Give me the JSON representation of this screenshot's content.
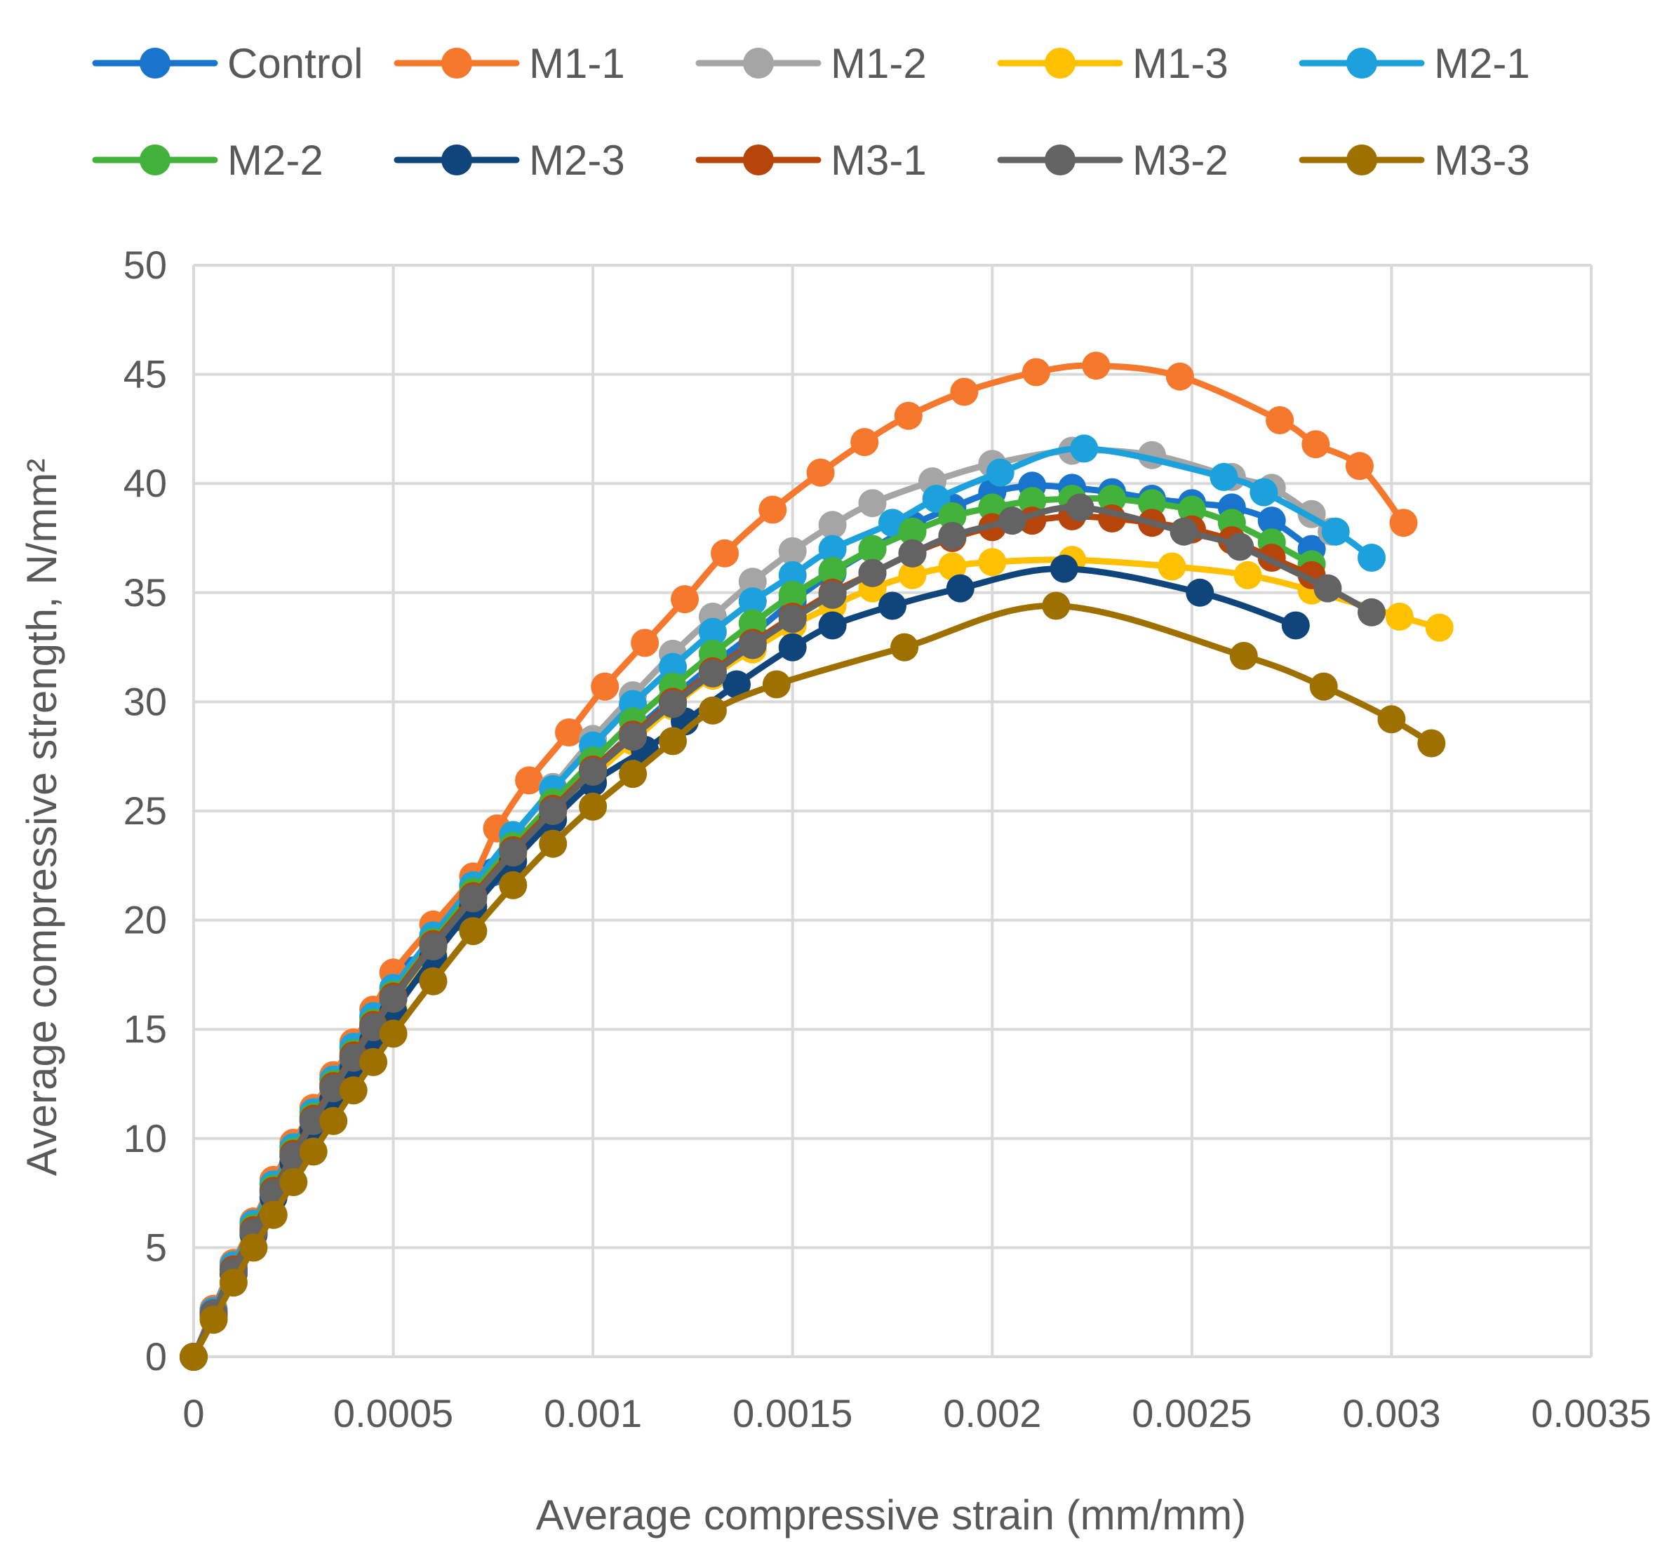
{
  "chart_data": {
    "type": "line",
    "title": "",
    "xlabel": "Average compressive strain (mm/mm)",
    "ylabel": "Average compressive strength, N/mm²",
    "xlim": [
      0,
      0.0035
    ],
    "ylim": [
      0,
      50
    ],
    "grid": true,
    "legend_position": "top",
    "x_ticks": [
      0,
      0.0005,
      0.001,
      0.0015,
      0.002,
      0.0025,
      0.003,
      0.0035
    ],
    "x_tick_labels": [
      "0",
      "0.0005",
      "0.001",
      "0.0015",
      "0.002",
      "0.0025",
      "0.003",
      "0.0035"
    ],
    "y_ticks": [
      0,
      5,
      10,
      15,
      20,
      25,
      30,
      35,
      40,
      45,
      50
    ],
    "y_tick_labels": [
      "0",
      "5",
      "10",
      "15",
      "20",
      "25",
      "30",
      "35",
      "40",
      "45",
      "50"
    ],
    "series": [
      {
        "name": "Control",
        "color": "#1874CD",
        "x": [
          0,
          5e-05,
          0.0001,
          0.00015,
          0.0002,
          0.00025,
          0.0003,
          0.00035,
          0.0004,
          0.00045,
          0.0005,
          0.00055,
          0.0006,
          0.00065,
          0.0007,
          0.00075,
          0.0008,
          0.0009,
          0.001,
          0.0011,
          0.0012,
          0.0013,
          0.0014,
          0.0015,
          0.0016,
          0.0017,
          0.0018,
          0.0019,
          0.002,
          0.0021,
          0.0022,
          0.0023,
          0.0024,
          0.0025,
          0.0026,
          0.0027,
          0.0028
        ],
        "y": [
          0,
          2,
          4,
          5.8,
          7.6,
          9.2,
          10.8,
          12.3,
          13.7,
          15.1,
          16.4,
          17.7,
          18.9,
          20.1,
          21.2,
          22.2,
          23.2,
          25.1,
          26.9,
          28.6,
          30.2,
          31.7,
          33.1,
          34.6,
          35.9,
          37,
          38.1,
          38.9,
          39.6,
          39.9,
          39.8,
          39.6,
          39.3,
          39.1,
          38.9,
          38.3,
          37
        ]
      },
      {
        "name": "M1-1",
        "color": "#F5782D",
        "x": [
          0,
          5e-05,
          0.0001,
          0.00015,
          0.0002,
          0.00025,
          0.0003,
          0.00035,
          0.0004,
          0.00045,
          0.0005,
          0.0006,
          0.0007,
          0.00076,
          0.00084,
          0.00094,
          0.00103,
          0.00113,
          0.00123,
          0.00133,
          0.00145,
          0.00157,
          0.00168,
          0.00179,
          0.00193,
          0.00211,
          0.00226,
          0.00247,
          0.00272,
          0.00281,
          0.00292,
          0.00303
        ],
        "y": [
          0,
          2.2,
          4.3,
          6.2,
          8.1,
          9.8,
          11.4,
          12.9,
          14.4,
          15.9,
          17.6,
          19.8,
          22,
          24.2,
          26.4,
          28.6,
          30.7,
          32.7,
          34.7,
          36.8,
          38.8,
          40.5,
          41.9,
          43.1,
          44.2,
          45.1,
          45.4,
          44.9,
          42.9,
          41.8,
          40.8,
          38.2
        ]
      },
      {
        "name": "M1-2",
        "color": "#A5A5A5",
        "x": [
          0,
          5e-05,
          0.0001,
          0.00015,
          0.0002,
          0.00025,
          0.0003,
          0.00035,
          0.0004,
          0.00045,
          0.0005,
          0.0006,
          0.0007,
          0.0008,
          0.0009,
          0.001,
          0.0011,
          0.0012,
          0.0013,
          0.0014,
          0.0015,
          0.0016,
          0.0017,
          0.00185,
          0.002,
          0.0022,
          0.0024,
          0.0026,
          0.0027,
          0.0028,
          0.00285
        ],
        "y": [
          0,
          2.1,
          4.2,
          6,
          7.9,
          9.6,
          11.2,
          12.7,
          14.1,
          15.5,
          16.8,
          19.2,
          21.5,
          23.8,
          26.1,
          28.3,
          30.3,
          32.2,
          33.9,
          35.5,
          36.9,
          38.1,
          39.1,
          40.1,
          40.9,
          41.5,
          41.3,
          40.3,
          39.8,
          38.6,
          37.8
        ]
      },
      {
        "name": "M1-3",
        "color": "#FFC000",
        "x": [
          0,
          5e-05,
          0.0001,
          0.00015,
          0.0002,
          0.00025,
          0.0003,
          0.00035,
          0.0004,
          0.00045,
          0.0005,
          0.0006,
          0.0007,
          0.0008,
          0.0009,
          0.001,
          0.0011,
          0.0012,
          0.0013,
          0.0014,
          0.0015,
          0.0016,
          0.0017,
          0.0018,
          0.0019,
          0.002,
          0.0022,
          0.00245,
          0.00264,
          0.0028,
          0.00302,
          0.00312
        ],
        "y": [
          0,
          1.9,
          3.8,
          5.6,
          7.3,
          8.9,
          10.4,
          11.9,
          13.3,
          14.7,
          16,
          18.5,
          20.8,
          22.9,
          24.8,
          26.6,
          28.2,
          29.8,
          31.2,
          32.4,
          33.5,
          34.4,
          35.2,
          35.8,
          36.2,
          36.4,
          36.5,
          36.2,
          35.8,
          35.1,
          33.9,
          33.4
        ]
      },
      {
        "name": "M2-1",
        "color": "#1CA1DC",
        "x": [
          0,
          5e-05,
          0.0001,
          0.00015,
          0.0002,
          0.00025,
          0.0003,
          0.00035,
          0.0004,
          0.00045,
          0.0005,
          0.0006,
          0.0007,
          0.0008,
          0.0009,
          0.001,
          0.0011,
          0.0012,
          0.0013,
          0.0014,
          0.0015,
          0.0016,
          0.00175,
          0.00186,
          0.00202,
          0.00223,
          0.00258,
          0.00268,
          0.00286,
          0.00295
        ],
        "y": [
          0,
          2.1,
          4.2,
          6.1,
          7.9,
          9.6,
          11.2,
          12.7,
          14.2,
          15.6,
          16.9,
          19.3,
          21.6,
          23.9,
          26,
          28,
          29.9,
          31.6,
          33.2,
          34.6,
          35.8,
          37,
          38.2,
          39.3,
          40.5,
          41.6,
          40.3,
          39.6,
          37.8,
          36.6
        ]
      },
      {
        "name": "M2-2",
        "color": "#43B23A",
        "x": [
          0,
          5e-05,
          0.0001,
          0.00015,
          0.0002,
          0.00025,
          0.0003,
          0.00035,
          0.0004,
          0.00045,
          0.0005,
          0.0006,
          0.0007,
          0.0008,
          0.0009,
          0.001,
          0.0011,
          0.0012,
          0.0013,
          0.0014,
          0.0015,
          0.0016,
          0.0017,
          0.0018,
          0.0019,
          0.002,
          0.0021,
          0.0022,
          0.0023,
          0.0024,
          0.0025,
          0.0026,
          0.0027,
          0.0028
        ],
        "y": [
          0,
          2,
          4,
          5.9,
          7.7,
          9.4,
          11,
          12.5,
          13.9,
          15.3,
          16.6,
          19,
          21.3,
          23.4,
          25.4,
          27.3,
          29.1,
          30.7,
          32.2,
          33.6,
          34.9,
          36,
          37,
          37.8,
          38.5,
          38.9,
          39.2,
          39.3,
          39.3,
          39.1,
          38.8,
          38.2,
          37.3,
          36.3
        ]
      },
      {
        "name": "M2-3",
        "color": "#10457B",
        "x": [
          0,
          5e-05,
          0.0001,
          0.00015,
          0.0002,
          0.00025,
          0.0003,
          0.00035,
          0.0004,
          0.00045,
          0.0005,
          0.0006,
          0.0007,
          0.0008,
          0.0009,
          0.001,
          0.00113,
          0.00123,
          0.00136,
          0.0015,
          0.0016,
          0.00175,
          0.00192,
          0.00218,
          0.00252,
          0.00276
        ],
        "y": [
          0,
          1.9,
          3.8,
          5.6,
          7.3,
          8.9,
          10.4,
          11.8,
          13.2,
          14.5,
          15.8,
          18.3,
          20.6,
          22.7,
          24.6,
          26.3,
          27.8,
          29.1,
          30.8,
          32.5,
          33.5,
          34.4,
          35.2,
          36.1,
          35,
          33.5
        ]
      },
      {
        "name": "M3-1",
        "color": "#B5450A",
        "x": [
          0,
          5e-05,
          0.0001,
          0.00015,
          0.0002,
          0.00025,
          0.0003,
          0.00035,
          0.0004,
          0.00045,
          0.0005,
          0.0006,
          0.0007,
          0.0008,
          0.0009,
          0.001,
          0.0011,
          0.0012,
          0.0013,
          0.0014,
          0.0015,
          0.0016,
          0.0017,
          0.0018,
          0.0019,
          0.002,
          0.0021,
          0.0022,
          0.0023,
          0.0024,
          0.0025,
          0.0026,
          0.0027,
          0.0028
        ],
        "y": [
          0,
          2,
          4,
          5.8,
          7.6,
          9.3,
          10.9,
          12.4,
          13.8,
          15.2,
          16.5,
          18.9,
          21.1,
          23.2,
          25.1,
          26.9,
          28.5,
          30,
          31.4,
          32.7,
          33.9,
          35,
          35.9,
          36.8,
          37.5,
          38,
          38.3,
          38.5,
          38.4,
          38.2,
          37.9,
          37.4,
          36.6,
          35.8
        ]
      },
      {
        "name": "M3-2",
        "color": "#636363",
        "x": [
          0,
          5e-05,
          0.0001,
          0.00015,
          0.0002,
          0.00025,
          0.0003,
          0.00035,
          0.0004,
          0.00045,
          0.0005,
          0.0006,
          0.0007,
          0.0008,
          0.0009,
          0.001,
          0.0011,
          0.0012,
          0.0013,
          0.0014,
          0.0015,
          0.0016,
          0.0017,
          0.0018,
          0.0019,
          0.00205,
          0.00222,
          0.00248,
          0.00262,
          0.00284,
          0.00295
        ],
        "y": [
          0,
          2,
          3.9,
          5.7,
          7.5,
          9.2,
          10.8,
          12.3,
          13.7,
          15.1,
          16.4,
          18.8,
          21,
          23.1,
          25,
          26.8,
          28.4,
          29.9,
          31.3,
          32.6,
          33.8,
          34.9,
          35.9,
          36.8,
          37.6,
          38.3,
          38.9,
          37.8,
          37.1,
          35.2,
          34.1
        ]
      },
      {
        "name": "M3-3",
        "color": "#9E7000",
        "x": [
          0,
          5e-05,
          0.0001,
          0.00015,
          0.0002,
          0.00025,
          0.0003,
          0.00035,
          0.0004,
          0.00045,
          0.0005,
          0.0006,
          0.0007,
          0.0008,
          0.0009,
          0.001,
          0.0011,
          0.0012,
          0.0013,
          0.00146,
          0.00178,
          0.00216,
          0.00263,
          0.00283,
          0.003,
          0.0031
        ],
        "y": [
          0,
          1.7,
          3.4,
          5,
          6.5,
          8,
          9.4,
          10.8,
          12.2,
          13.5,
          14.8,
          17.2,
          19.5,
          21.6,
          23.5,
          25.2,
          26.7,
          28.2,
          29.6,
          30.8,
          32.5,
          34.4,
          32.1,
          30.7,
          29.2,
          28.1
        ]
      }
    ]
  }
}
